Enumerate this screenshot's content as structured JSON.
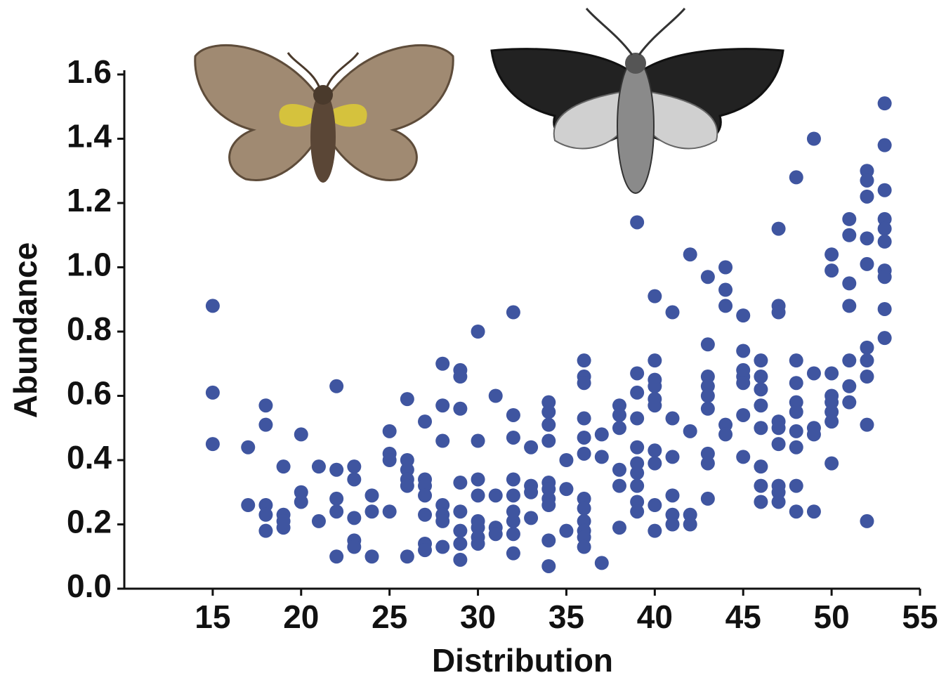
{
  "chart_data": {
    "type": "scatter",
    "x_label": "Distribution",
    "y_label": "Abundance",
    "color": "#3f55a0",
    "xlim": [
      10,
      55
    ],
    "xticks": [
      15,
      20,
      25,
      30,
      35,
      40,
      45,
      50,
      55
    ],
    "ylim": [
      0,
      1.6
    ],
    "yticks": [
      {
        "value": 0,
        "label": "0.0"
      },
      0.2,
      0.4,
      0.6,
      0.8,
      {
        "value": 1,
        "label": "1.0"
      },
      1.2,
      1.4,
      1.6
    ],
    "x": [
      15,
      15,
      15,
      17,
      17,
      18,
      18,
      18,
      18,
      18,
      19,
      19,
      19,
      19,
      20,
      20,
      20,
      21,
      21,
      22,
      22,
      22,
      22,
      22,
      23,
      23,
      23,
      23,
      23,
      24,
      24,
      24,
      25,
      25,
      25,
      25,
      26,
      26,
      26,
      26,
      26,
      26,
      27,
      27,
      27,
      27,
      27,
      27,
      27,
      28,
      28,
      28,
      28,
      28,
      28,
      28,
      29,
      29,
      29,
      29,
      29,
      29,
      29,
      29,
      30,
      30,
      30,
      30,
      30,
      30,
      30,
      30,
      31,
      31,
      31,
      31,
      32,
      32,
      32,
      32,
      32,
      32,
      32,
      32,
      32,
      33,
      33,
      33,
      33,
      34,
      34,
      34,
      34,
      34,
      34,
      34,
      34,
      34,
      34,
      35,
      35,
      35,
      36,
      36,
      36,
      36,
      36,
      36,
      36,
      36,
      36,
      36,
      36,
      36,
      37,
      37,
      37,
      38,
      38,
      38,
      38,
      38,
      38,
      39,
      39,
      39,
      39,
      39,
      39,
      39,
      39,
      39,
      39,
      40,
      40,
      40,
      40,
      40,
      40,
      40,
      40,
      40,
      40,
      41,
      41,
      41,
      41,
      41,
      41,
      42,
      42,
      42,
      42,
      43,
      43,
      43,
      43,
      43,
      43,
      43,
      43,
      43,
      44,
      44,
      44,
      44,
      44,
      45,
      45,
      45,
      45,
      45,
      45,
      45,
      46,
      46,
      46,
      46,
      46,
      46,
      46,
      46,
      47,
      47,
      47,
      47,
      47,
      47,
      47,
      47,
      47,
      48,
      48,
      48,
      48,
      48,
      48,
      48,
      48,
      48,
      49,
      49,
      49,
      49,
      49,
      50,
      50,
      50,
      50,
      50,
      50,
      50,
      50,
      51,
      51,
      51,
      51,
      51,
      51,
      51,
      52,
      52,
      52,
      52,
      52,
      52,
      52,
      52,
      52,
      52,
      53,
      53,
      53,
      53,
      53,
      53,
      53,
      53,
      53,
      53
    ],
    "y": [
      0.88,
      0.61,
      0.45,
      0.26,
      0.44,
      0.57,
      0.51,
      0.26,
      0.23,
      0.18,
      0.38,
      0.23,
      0.21,
      0.19,
      0.48,
      0.3,
      0.27,
      0.38,
      0.21,
      0.63,
      0.37,
      0.28,
      0.24,
      0.1,
      0.38,
      0.34,
      0.22,
      0.15,
      0.13,
      0.29,
      0.24,
      0.1,
      0.49,
      0.42,
      0.4,
      0.24,
      0.59,
      0.4,
      0.37,
      0.34,
      0.32,
      0.1,
      0.52,
      0.34,
      0.32,
      0.29,
      0.23,
      0.14,
      0.12,
      0.7,
      0.57,
      0.46,
      0.26,
      0.23,
      0.21,
      0.13,
      0.68,
      0.66,
      0.56,
      0.33,
      0.24,
      0.18,
      0.14,
      0.09,
      0.8,
      0.46,
      0.34,
      0.29,
      0.21,
      0.19,
      0.16,
      0.14,
      0.6,
      0.29,
      0.19,
      0.17,
      0.86,
      0.54,
      0.47,
      0.34,
      0.29,
      0.24,
      0.21,
      0.17,
      0.11,
      0.44,
      0.32,
      0.3,
      0.22,
      0.58,
      0.55,
      0.51,
      0.46,
      0.33,
      0.31,
      0.28,
      0.26,
      0.15,
      0.07,
      0.4,
      0.31,
      0.18,
      0.71,
      0.66,
      0.64,
      0.53,
      0.47,
      0.42,
      0.28,
      0.25,
      0.21,
      0.18,
      0.16,
      0.13,
      0.48,
      0.41,
      0.08,
      0.57,
      0.54,
      0.5,
      0.37,
      0.32,
      0.19,
      1.14,
      0.67,
      0.61,
      0.53,
      0.44,
      0.39,
      0.36,
      0.32,
      0.27,
      0.24,
      0.91,
      0.71,
      0.65,
      0.63,
      0.59,
      0.57,
      0.43,
      0.39,
      0.26,
      0.18,
      0.86,
      0.53,
      0.41,
      0.29,
      0.23,
      0.2,
      1.04,
      0.49,
      0.23,
      0.2,
      0.97,
      0.76,
      0.66,
      0.63,
      0.6,
      0.56,
      0.42,
      0.39,
      0.28,
      1.0,
      0.93,
      0.88,
      0.51,
      0.48,
      0.85,
      0.74,
      0.68,
      0.66,
      0.64,
      0.54,
      0.41,
      0.71,
      0.66,
      0.62,
      0.57,
      0.5,
      0.38,
      0.32,
      0.27,
      1.12,
      0.88,
      0.86,
      0.52,
      0.5,
      0.45,
      0.32,
      0.3,
      0.27,
      1.28,
      0.71,
      0.64,
      0.58,
      0.55,
      0.49,
      0.44,
      0.32,
      0.24,
      1.4,
      0.67,
      0.5,
      0.48,
      0.24,
      1.04,
      0.99,
      0.67,
      0.6,
      0.58,
      0.55,
      0.52,
      0.39,
      1.15,
      1.1,
      0.95,
      0.88,
      0.71,
      0.63,
      0.58,
      1.3,
      1.27,
      1.22,
      1.09,
      1.01,
      0.75,
      0.71,
      0.66,
      0.51,
      0.21,
      1.51,
      1.38,
      1.24,
      1.15,
      1.12,
      1.08,
      0.99,
      0.97,
      0.87,
      0.78
    ]
  }
}
